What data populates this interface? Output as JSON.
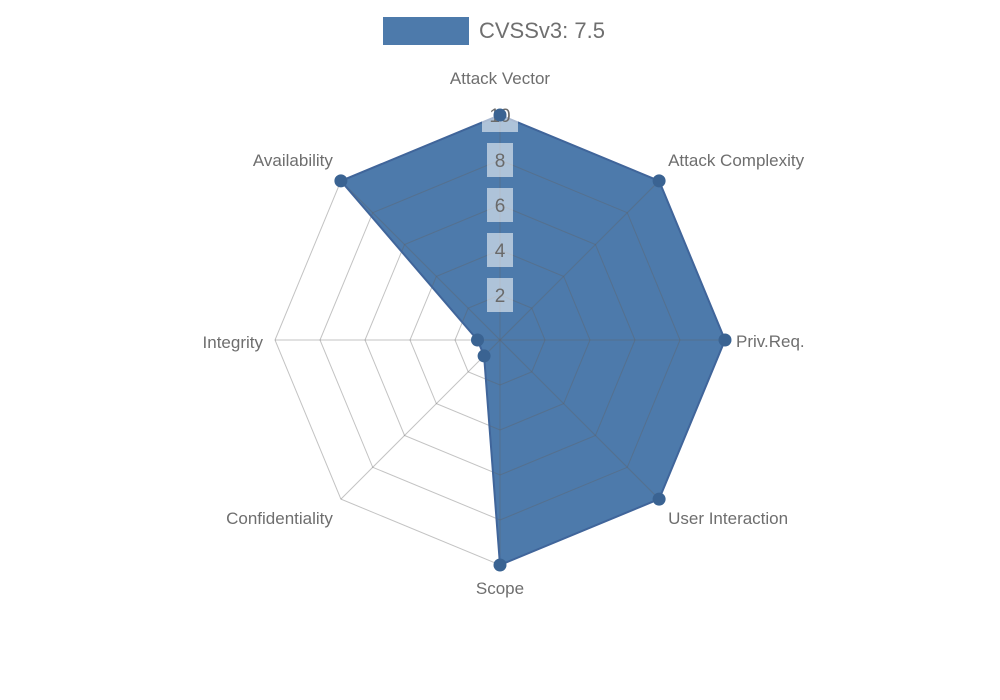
{
  "legend": {
    "label": "CVSSv3: 7.5",
    "color": "#4d7aab",
    "position": "top"
  },
  "chart_data": {
    "type": "radar",
    "title": "CVSSv3: 7.5",
    "categories": [
      "Attack Vector",
      "Attack Complexity",
      "Priv.Req.",
      "User Interaction",
      "Scope",
      "Confidentiality",
      "Integrity",
      "Availability"
    ],
    "series": [
      {
        "name": "CVSSv3: 7.5",
        "values": [
          10,
          10,
          10,
          10,
          10,
          1,
          1,
          10
        ],
        "fill_color": "#4d7aab",
        "line_color": "#40659a",
        "marker_color": "#3a6392",
        "marker_radius": 6.5
      }
    ],
    "scale": {
      "min": 0,
      "max": 10,
      "tick_interval": 2,
      "ticks": [
        2,
        4,
        6,
        8,
        10
      ]
    },
    "tick_labels": {
      "values": [
        "2",
        "4",
        "6",
        "8",
        "10"
      ],
      "text_color": "#6a6a6a",
      "box_color": "#ffffff",
      "box_opacity": 0.55
    },
    "grid": {
      "shape": "octagon",
      "rings": 5,
      "spokes": 8,
      "color": "rgba(96,96,96,0.38)"
    },
    "axis_label_color": "#6e6e6e",
    "legend_position": "top"
  }
}
